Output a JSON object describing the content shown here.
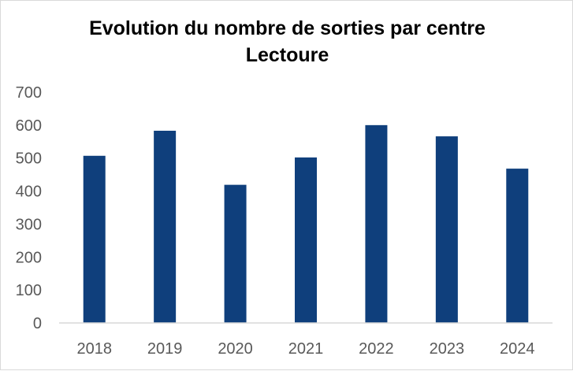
{
  "chart_data": {
    "type": "bar",
    "title": "Evolution du nombre de sorties par centre",
    "subtitle": "Lectoure",
    "categories": [
      "2018",
      "2019",
      "2020",
      "2021",
      "2022",
      "2023",
      "2024"
    ],
    "values": [
      507,
      583,
      419,
      502,
      600,
      566,
      468
    ],
    "ylim": [
      0,
      700
    ],
    "yticks": [
      "0",
      "100",
      "200",
      "300",
      "400",
      "500",
      "600",
      "700"
    ],
    "xlabel": "",
    "ylabel": "",
    "grid": false,
    "legend": "none",
    "bar_color": "#0f3f7c"
  }
}
